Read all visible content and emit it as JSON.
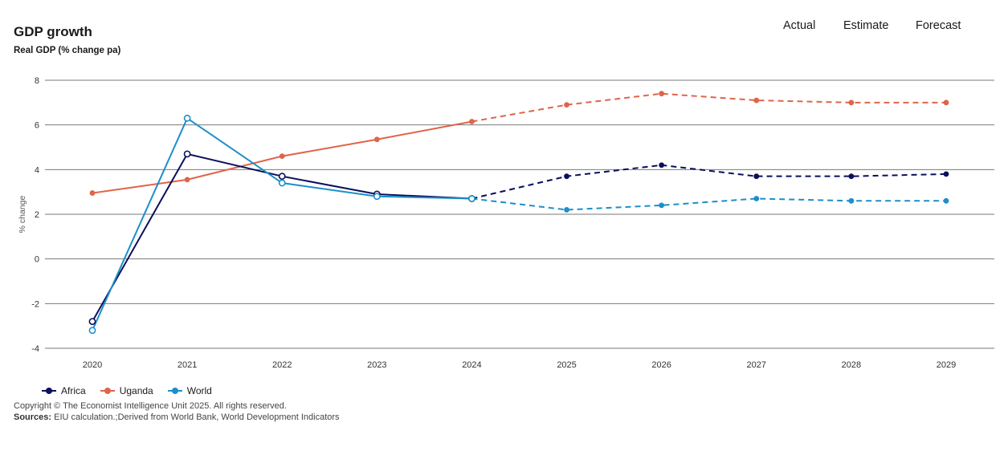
{
  "header": {
    "title": "GDP growth",
    "subtitle": "Real GDP (% change pa)"
  },
  "phases": {
    "actual": "Actual",
    "estimate": "Estimate",
    "forecast": "Forecast"
  },
  "footer": {
    "copyright": "Copyright © The Economist Intelligence Unit 2025. All rights reserved.",
    "sources_label": "Sources:",
    "sources_text": " EIU calculation.;Derived from World Bank, World Development Indicators"
  },
  "chart_data": {
    "type": "line",
    "title": "GDP growth",
    "subtitle": "Real GDP (% change pa)",
    "xlabel": "",
    "ylabel": "% change",
    "x": [
      "2020",
      "2021",
      "2022",
      "2023",
      "2024",
      "2025",
      "2026",
      "2027",
      "2028",
      "2029"
    ],
    "ylim": [
      -4,
      8
    ],
    "yticks": [
      -4,
      -2,
      0,
      2,
      4,
      6,
      8
    ],
    "grid": true,
    "legend_position": "bottom-left",
    "solid_until": "2024",
    "series": [
      {
        "name": "Africa",
        "color": "#0b0f5c",
        "hollow_until": "2024",
        "values": [
          -2.8,
          4.7,
          3.7,
          2.9,
          2.7,
          3.7,
          4.2,
          3.7,
          3.7,
          3.8
        ]
      },
      {
        "name": "Uganda",
        "color": "#e0644a",
        "hollow_until": null,
        "values": [
          2.95,
          3.55,
          4.6,
          5.35,
          6.15,
          6.9,
          7.4,
          7.1,
          7.0,
          7.0
        ]
      },
      {
        "name": "World",
        "color": "#1b8fc9",
        "hollow_until": "2024",
        "values": [
          -3.2,
          6.3,
          3.4,
          2.8,
          2.7,
          2.2,
          2.4,
          2.7,
          2.6,
          2.6
        ]
      }
    ]
  }
}
